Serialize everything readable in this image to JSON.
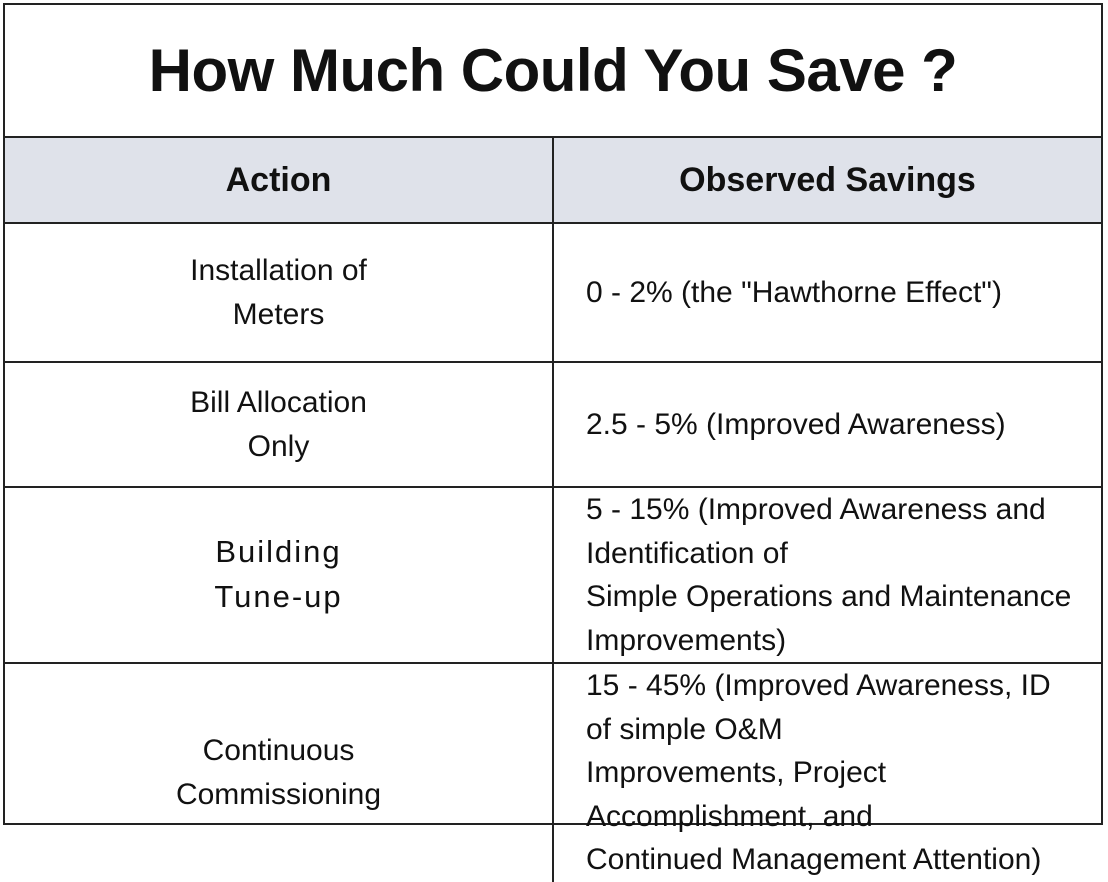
{
  "title": "How Much Could You Save ?",
  "headers": {
    "action": "Action",
    "savings": "Observed Savings"
  },
  "rows": [
    {
      "action_lines": [
        "Installation of",
        "Meters"
      ],
      "savings_lines": [
        "0 - 2% (the \"Hawthorne Effect\")"
      ]
    },
    {
      "action_lines": [
        "Bill Allocation",
        "Only"
      ],
      "savings_lines": [
        "2.5 - 5% (Improved Awareness)"
      ]
    },
    {
      "action_lines": [
        "Building",
        "Tune-up"
      ],
      "savings_lines": [
        "5 - 15% (Improved Awareness and Identification of",
        "Simple Operations and Maintenance Improvements)"
      ]
    },
    {
      "action_lines": [
        "Continuous",
        "Commissioning"
      ],
      "savings_lines": [
        "15 - 45% (Improved Awareness, ID of simple O&M",
        "Improvements, Project Accomplishment, and",
        "Continued Management Attention)"
      ]
    }
  ],
  "colors": {
    "header_background": "#dfe2ea",
    "border": "#222222"
  }
}
